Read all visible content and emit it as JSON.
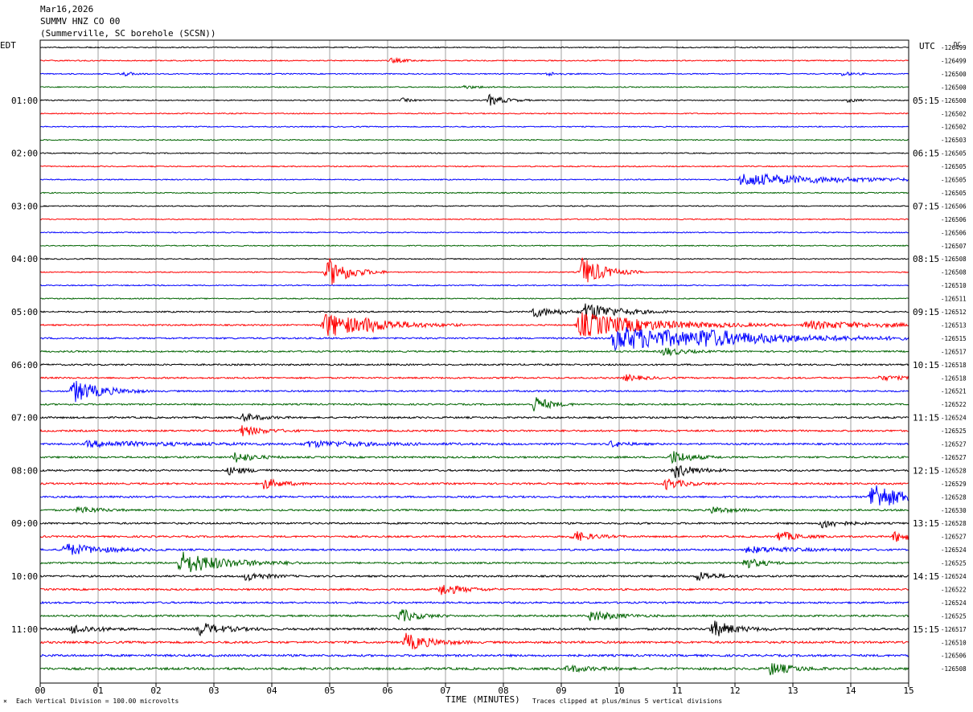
{
  "header": {
    "date": "Mar16,2026",
    "channel": "SUMMV HNZ CO 00",
    "station": "(Summerville, SC borehole (SCSN))"
  },
  "left_zone_label": "EDT",
  "right_zone_label": "UTC",
  "dc_label": "DC",
  "footer": {
    "scale_note": "Each Vertical Division =  100.00 microvolts",
    "xaxis_title": "TIME (MINUTES)",
    "clip_note": "Traces clipped at plus/minus 5 vertical divisions"
  },
  "colors": {
    "trace_cycle": [
      "#000000",
      "#ff0000",
      "#0000ff",
      "#006400"
    ],
    "grid": "#a0a0a0",
    "frame": "#000000"
  },
  "chart_data": {
    "type": "helicorder",
    "title": "SUMMV HNZ CO 00",
    "xlabel": "TIME (MINUTES)",
    "xlim": [
      0,
      15
    ],
    "x_ticks": [
      "00",
      "01",
      "02",
      "03",
      "04",
      "05",
      "06",
      "07",
      "08",
      "09",
      "10",
      "11",
      "12",
      "13",
      "14",
      "15"
    ],
    "minutes_per_line": 15,
    "line_count": 48,
    "left_hour_labels": [
      {
        "line": 4,
        "label": "01:00"
      },
      {
        "line": 8,
        "label": "02:00"
      },
      {
        "line": 12,
        "label": "03:00"
      },
      {
        "line": 16,
        "label": "04:00"
      },
      {
        "line": 20,
        "label": "05:00"
      },
      {
        "line": 24,
        "label": "06:00"
      },
      {
        "line": 28,
        "label": "07:00"
      },
      {
        "line": 32,
        "label": "08:00"
      },
      {
        "line": 36,
        "label": "09:00"
      },
      {
        "line": 40,
        "label": "10:00"
      },
      {
        "line": 44,
        "label": "11:00"
      }
    ],
    "right_hour_labels": [
      {
        "line": 4,
        "label": "05:15"
      },
      {
        "line": 8,
        "label": "06:15"
      },
      {
        "line": 12,
        "label": "07:15"
      },
      {
        "line": 16,
        "label": "08:15"
      },
      {
        "line": 20,
        "label": "09:15"
      },
      {
        "line": 24,
        "label": "10:15"
      },
      {
        "line": 28,
        "label": "11:15"
      },
      {
        "line": 32,
        "label": "12:15"
      },
      {
        "line": 36,
        "label": "13:15"
      },
      {
        "line": 40,
        "label": "14:15"
      },
      {
        "line": 44,
        "label": "15:15"
      }
    ],
    "dc_offsets": [
      "-126499",
      "-126499",
      "-126500",
      "-126500",
      "-126500",
      "-126502",
      "-126502",
      "-126503",
      "-126505",
      "-126505",
      "-126505",
      "-126505",
      "-126506",
      "-126506",
      "-126506",
      "-126507",
      "-126508",
      "-126508",
      "-126510",
      "-126511",
      "-126512",
      "-126513",
      "-126515",
      "-126517",
      "-126518",
      "-126518",
      "-126521",
      "-126522",
      "-126524",
      "-126525",
      "-126527",
      "-126527",
      "-126528",
      "-126529",
      "-126528",
      "-126530",
      "-126528",
      "-126527",
      "-126524",
      "-126525",
      "-126524",
      "-126522",
      "-126524",
      "-126525",
      "-126517",
      "-126510",
      "-126506",
      "-126508"
    ],
    "noise_levels": [
      0.6,
      0.6,
      0.6,
      0.6,
      0.6,
      0.6,
      0.6,
      0.6,
      0.6,
      0.6,
      0.6,
      0.6,
      0.6,
      0.6,
      0.6,
      0.6,
      0.6,
      0.6,
      0.6,
      0.6,
      0.8,
      0.8,
      0.9,
      0.9,
      0.9,
      0.9,
      0.9,
      0.9,
      1.0,
      1.0,
      1.0,
      1.0,
      1.0,
      1.0,
      1.0,
      1.0,
      1.0,
      1.0,
      1.0,
      1.0,
      1.0,
      1.0,
      1.0,
      1.0,
      1.2,
      1.2,
      1.2,
      1.3
    ],
    "events": [
      {
        "line": 1,
        "t": 6.05,
        "amp": 6,
        "dur": 0.25
      },
      {
        "line": 2,
        "t": 1.4,
        "amp": 6,
        "dur": 0.2
      },
      {
        "line": 2,
        "t": 8.75,
        "amp": 5,
        "dur": 0.2
      },
      {
        "line": 2,
        "t": 13.85,
        "amp": 5,
        "dur": 0.2
      },
      {
        "line": 3,
        "t": 7.3,
        "amp": 4,
        "dur": 0.3
      },
      {
        "line": 4,
        "t": 7.75,
        "amp": 14,
        "dur": 0.25
      },
      {
        "line": 4,
        "t": 6.25,
        "amp": 5,
        "dur": 0.15
      },
      {
        "line": 4,
        "t": 13.95,
        "amp": 5,
        "dur": 0.15
      },
      {
        "line": 10,
        "t": 12.1,
        "amp": 16,
        "dur": 1.6
      },
      {
        "line": 17,
        "t": 4.95,
        "amp": 40,
        "dur": 0.35
      },
      {
        "line": 17,
        "t": 9.35,
        "amp": 40,
        "dur": 0.35
      },
      {
        "line": 20,
        "t": 8.5,
        "amp": 14,
        "dur": 0.4
      },
      {
        "line": 20,
        "t": 9.4,
        "amp": 25,
        "dur": 0.5
      },
      {
        "line": 21,
        "t": 4.9,
        "amp": 32,
        "dur": 0.8
      },
      {
        "line": 21,
        "t": 9.3,
        "amp": 32,
        "dur": 1.2
      },
      {
        "line": 21,
        "t": 13.2,
        "amp": 10,
        "dur": 1.4
      },
      {
        "line": 21,
        "t": 5.6,
        "amp": 6,
        "dur": 0.4
      },
      {
        "line": 22,
        "t": 9.9,
        "amp": 30,
        "dur": 2.0
      },
      {
        "line": 22,
        "t": 11.4,
        "amp": 12,
        "dur": 0.6
      },
      {
        "line": 23,
        "t": 10.75,
        "amp": 12,
        "dur": 0.3
      },
      {
        "line": 25,
        "t": 10.1,
        "amp": 8,
        "dur": 0.3
      },
      {
        "line": 25,
        "t": 14.5,
        "amp": 6,
        "dur": 0.4
      },
      {
        "line": 26,
        "t": 0.55,
        "amp": 30,
        "dur": 0.45
      },
      {
        "line": 27,
        "t": 8.52,
        "amp": 22,
        "dur": 0.25
      },
      {
        "line": 28,
        "t": 3.5,
        "amp": 10,
        "dur": 0.3
      },
      {
        "line": 29,
        "t": 3.45,
        "amp": 14,
        "dur": 0.35
      },
      {
        "line": 30,
        "t": 0.8,
        "amp": 7,
        "dur": 1.6
      },
      {
        "line": 30,
        "t": 4.6,
        "amp": 7,
        "dur": 1.2
      },
      {
        "line": 30,
        "t": 9.85,
        "amp": 8,
        "dur": 0.25
      },
      {
        "line": 31,
        "t": 3.35,
        "amp": 14,
        "dur": 0.3
      },
      {
        "line": 31,
        "t": 10.9,
        "amp": 18,
        "dur": 0.3
      },
      {
        "line": 32,
        "t": 3.25,
        "amp": 10,
        "dur": 0.3
      },
      {
        "line": 32,
        "t": 10.95,
        "amp": 20,
        "dur": 0.3
      },
      {
        "line": 33,
        "t": 3.85,
        "amp": 14,
        "dur": 0.3
      },
      {
        "line": 33,
        "t": 10.8,
        "amp": 14,
        "dur": 0.3
      },
      {
        "line": 34,
        "t": 14.35,
        "amp": 40,
        "dur": 0.45
      },
      {
        "line": 35,
        "t": 0.65,
        "amp": 10,
        "dur": 0.3
      },
      {
        "line": 35,
        "t": 11.6,
        "amp": 9,
        "dur": 0.3
      },
      {
        "line": 36,
        "t": 13.5,
        "amp": 12,
        "dur": 0.3
      },
      {
        "line": 37,
        "t": 9.2,
        "amp": 14,
        "dur": 0.3
      },
      {
        "line": 37,
        "t": 12.75,
        "amp": 14,
        "dur": 0.3
      },
      {
        "line": 37,
        "t": 14.75,
        "amp": 14,
        "dur": 0.3
      },
      {
        "line": 38,
        "t": 0.4,
        "amp": 16,
        "dur": 0.6
      },
      {
        "line": 38,
        "t": 12.2,
        "amp": 8,
        "dur": 0.8
      },
      {
        "line": 39,
        "t": 2.4,
        "amp": 30,
        "dur": 0.7
      },
      {
        "line": 39,
        "t": 12.15,
        "amp": 14,
        "dur": 0.3
      },
      {
        "line": 40,
        "t": 3.55,
        "amp": 12,
        "dur": 0.3
      },
      {
        "line": 40,
        "t": 11.35,
        "amp": 12,
        "dur": 0.3
      },
      {
        "line": 41,
        "t": 6.9,
        "amp": 16,
        "dur": 0.35
      },
      {
        "line": 43,
        "t": 6.2,
        "amp": 18,
        "dur": 0.3
      },
      {
        "line": 43,
        "t": 9.5,
        "amp": 14,
        "dur": 0.4
      },
      {
        "line": 44,
        "t": 0.55,
        "amp": 12,
        "dur": 0.35
      },
      {
        "line": 44,
        "t": 2.75,
        "amp": 16,
        "dur": 0.4
      },
      {
        "line": 44,
        "t": 11.6,
        "amp": 22,
        "dur": 0.35
      },
      {
        "line": 45,
        "t": 6.3,
        "amp": 22,
        "dur": 0.4
      },
      {
        "line": 47,
        "t": 12.6,
        "amp": 16,
        "dur": 0.35
      },
      {
        "line": 47,
        "t": 9.1,
        "amp": 8,
        "dur": 0.4
      }
    ]
  }
}
